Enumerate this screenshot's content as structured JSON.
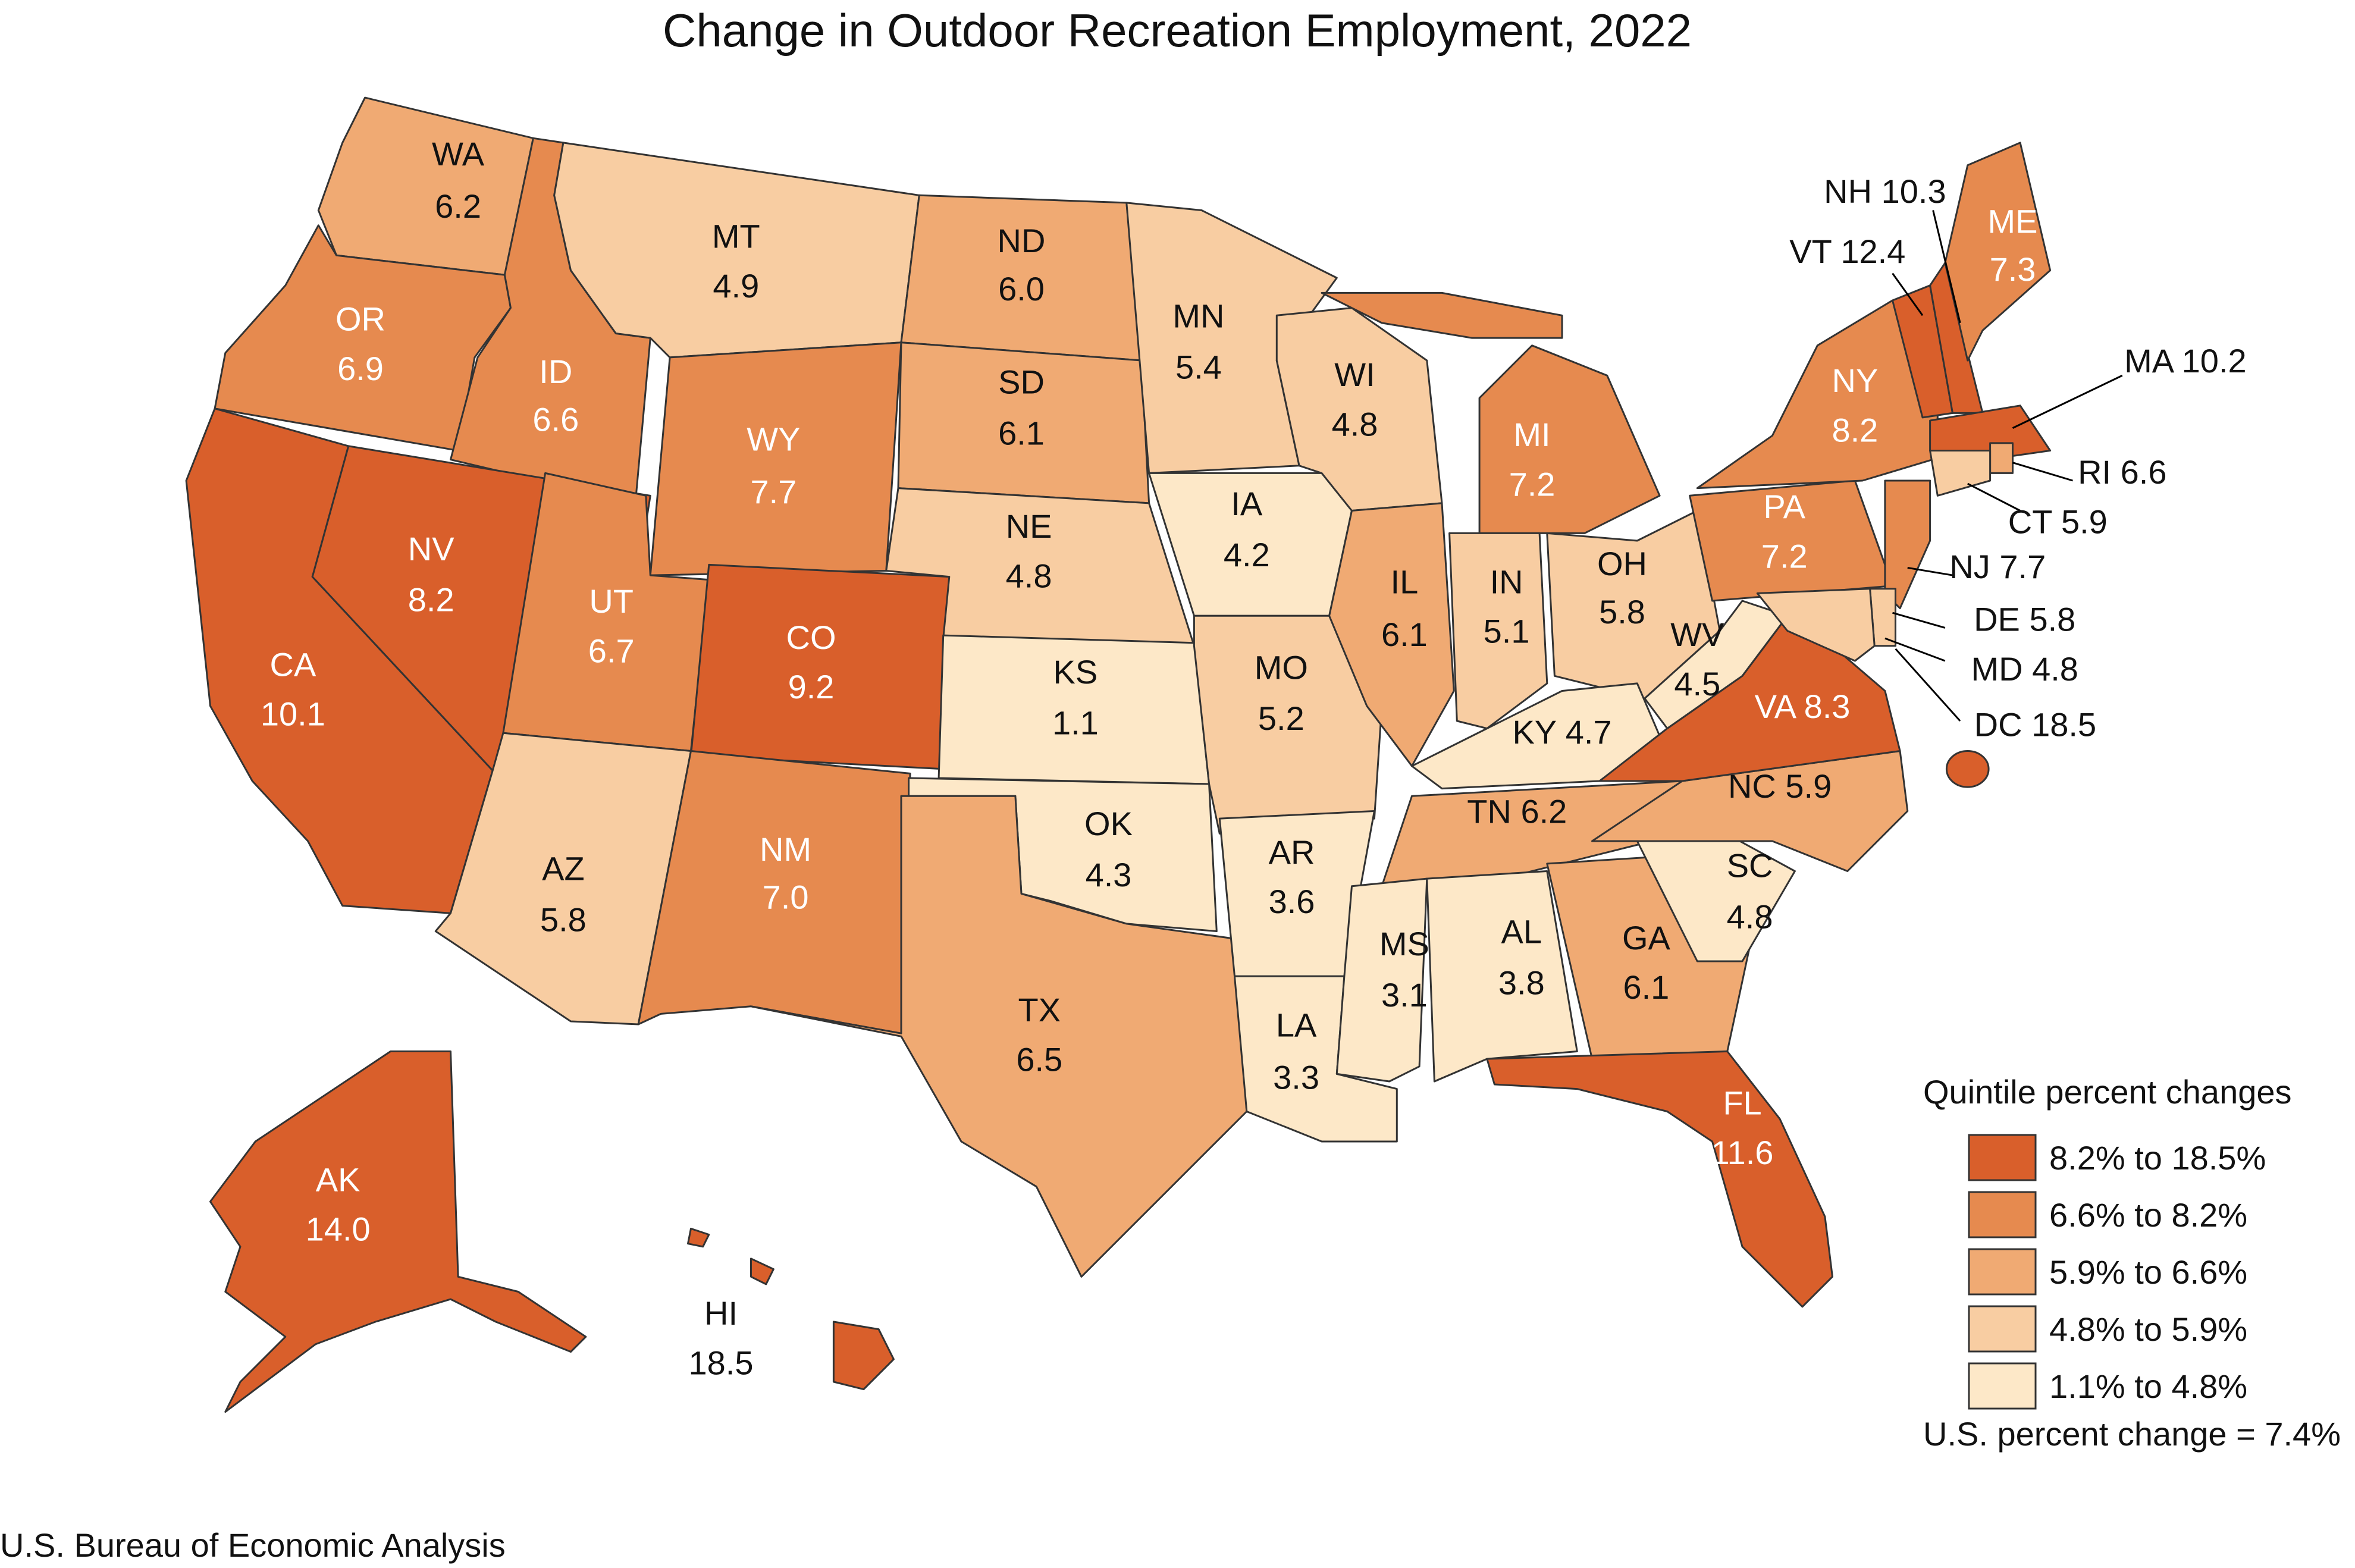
{
  "title": "Change in Outdoor Recreation Employment, 2022",
  "source": "U.S. Bureau of Economic Analysis",
  "legend": {
    "title": "Quintile percent changes",
    "items": [
      {
        "label": "8.2% to 18.5%",
        "color": "#d95f2b"
      },
      {
        "label": "6.6% to 8.2%",
        "color": "#e68a4f"
      },
      {
        "label": "5.9% to 6.6%",
        "color": "#f0aa73"
      },
      {
        "label": "4.8% to 5.9%",
        "color": "#f8cda2"
      },
      {
        "label": "1.1% to 4.8%",
        "color": "#fde8c8"
      }
    ],
    "us_note": "U.S. percent change = 7.4%"
  },
  "states": [
    {
      "abbr": "WA",
      "value": 6.2,
      "color": "#f0aa73"
    },
    {
      "abbr": "OR",
      "value": 6.9,
      "color": "#e68a4f"
    },
    {
      "abbr": "CA",
      "value": 10.1,
      "color": "#d95f2b"
    },
    {
      "abbr": "ID",
      "value": 6.6,
      "color": "#e68a4f"
    },
    {
      "abbr": "NV",
      "value": 8.2,
      "color": "#d95f2b"
    },
    {
      "abbr": "MT",
      "value": 4.9,
      "color": "#f8cda2"
    },
    {
      "abbr": "WY",
      "value": 7.7,
      "color": "#e68a4f"
    },
    {
      "abbr": "UT",
      "value": 6.7,
      "color": "#e68a4f"
    },
    {
      "abbr": "AZ",
      "value": 5.8,
      "color": "#f8cda2"
    },
    {
      "abbr": "CO",
      "value": 9.2,
      "color": "#d95f2b"
    },
    {
      "abbr": "NM",
      "value": 7.0,
      "color": "#e68a4f"
    },
    {
      "abbr": "ND",
      "value": 6.0,
      "color": "#f0aa73"
    },
    {
      "abbr": "SD",
      "value": 6.1,
      "color": "#f0aa73"
    },
    {
      "abbr": "NE",
      "value": 4.8,
      "color": "#f8cda2"
    },
    {
      "abbr": "KS",
      "value": 1.1,
      "color": "#fde8c8"
    },
    {
      "abbr": "OK",
      "value": 4.3,
      "color": "#fde8c8"
    },
    {
      "abbr": "TX",
      "value": 6.5,
      "color": "#f0aa73"
    },
    {
      "abbr": "MN",
      "value": 5.4,
      "color": "#f8cda2"
    },
    {
      "abbr": "IA",
      "value": 4.2,
      "color": "#fde8c8"
    },
    {
      "abbr": "MO",
      "value": 5.2,
      "color": "#f8cda2"
    },
    {
      "abbr": "AR",
      "value": 3.6,
      "color": "#fde8c8"
    },
    {
      "abbr": "LA",
      "value": 3.3,
      "color": "#fde8c8"
    },
    {
      "abbr": "WI",
      "value": 4.8,
      "color": "#f8cda2"
    },
    {
      "abbr": "IL",
      "value": 6.1,
      "color": "#f0aa73"
    },
    {
      "abbr": "MI",
      "value": 7.2,
      "color": "#e68a4f"
    },
    {
      "abbr": "IN",
      "value": 5.1,
      "color": "#f8cda2"
    },
    {
      "abbr": "OH",
      "value": 5.8,
      "color": "#f8cda2"
    },
    {
      "abbr": "KY",
      "value": 4.7,
      "color": "#fde8c8"
    },
    {
      "abbr": "TN",
      "value": 6.2,
      "color": "#f0aa73"
    },
    {
      "abbr": "MS",
      "value": 3.1,
      "color": "#fde8c8"
    },
    {
      "abbr": "AL",
      "value": 3.8,
      "color": "#fde8c8"
    },
    {
      "abbr": "GA",
      "value": 6.1,
      "color": "#f0aa73"
    },
    {
      "abbr": "FL",
      "value": 11.6,
      "color": "#d95f2b"
    },
    {
      "abbr": "SC",
      "value": 4.8,
      "color": "#fde8c8"
    },
    {
      "abbr": "NC",
      "value": 5.9,
      "color": "#f0aa73"
    },
    {
      "abbr": "VA",
      "value": 8.3,
      "color": "#d95f2b"
    },
    {
      "abbr": "WV",
      "value": 4.5,
      "color": "#fde8c8"
    },
    {
      "abbr": "PA",
      "value": 7.2,
      "color": "#e68a4f"
    },
    {
      "abbr": "NY",
      "value": 8.2,
      "color": "#e68a4f"
    },
    {
      "abbr": "VT",
      "value": 12.4,
      "color": "#d95f2b"
    },
    {
      "abbr": "NH",
      "value": 10.3,
      "color": "#d95f2b"
    },
    {
      "abbr": "ME",
      "value": 7.3,
      "color": "#e68a4f"
    },
    {
      "abbr": "MA",
      "value": 10.2,
      "color": "#d95f2b"
    },
    {
      "abbr": "RI",
      "value": 6.6,
      "color": "#f0aa73"
    },
    {
      "abbr": "CT",
      "value": 5.9,
      "color": "#f8cda2"
    },
    {
      "abbr": "NJ",
      "value": 7.7,
      "color": "#e68a4f"
    },
    {
      "abbr": "DE",
      "value": 5.8,
      "color": "#f8cda2"
    },
    {
      "abbr": "MD",
      "value": 4.8,
      "color": "#f8cda2"
    },
    {
      "abbr": "DC",
      "value": 18.5,
      "color": "#d95f2b"
    },
    {
      "abbr": "AK",
      "value": 14.0,
      "color": "#d95f2b"
    },
    {
      "abbr": "HI",
      "value": 18.5,
      "color": "#d95f2b"
    }
  ]
}
